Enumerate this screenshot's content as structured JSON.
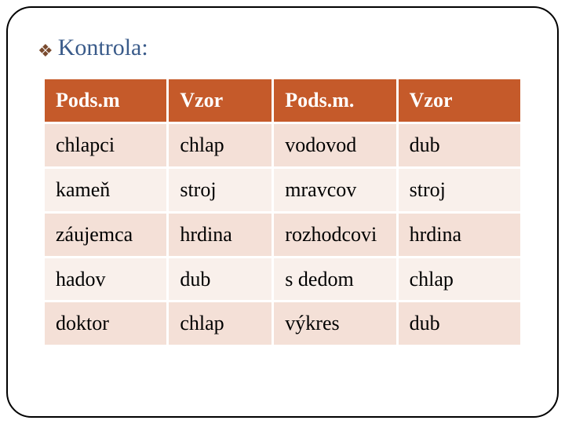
{
  "heading": {
    "bullet_glyph": "❖",
    "bullet_color": "#7a4b2e",
    "text": "Kontrola:",
    "text_color": "#3a5b8a",
    "fontsize": 30
  },
  "table": {
    "header_bg": "#c55a2a",
    "header_fg": "#ffffff",
    "row_odd_bg": "#f4e0d7",
    "row_even_bg": "#f9f0eb",
    "cell_border_color": "#ffffff",
    "cell_fontsize": 26,
    "columns": [
      {
        "label": "Pods.m",
        "width_pct": 26
      },
      {
        "label": "Vzor",
        "width_pct": 22
      },
      {
        "label": "Pods.m.",
        "width_pct": 26
      },
      {
        "label": "Vzor",
        "width_pct": 26
      }
    ],
    "rows": [
      [
        "chlapci",
        "chlap",
        "vodovod",
        "dub"
      ],
      [
        "kameň",
        "stroj",
        "mravcov",
        "stroj"
      ],
      [
        "záujemca",
        "hrdina",
        "rozhodcovi",
        "hrdina"
      ],
      [
        "hadov",
        "dub",
        "s dedom",
        "chlap"
      ],
      [
        "doktor",
        "chlap",
        "výkres",
        "dub"
      ]
    ]
  }
}
